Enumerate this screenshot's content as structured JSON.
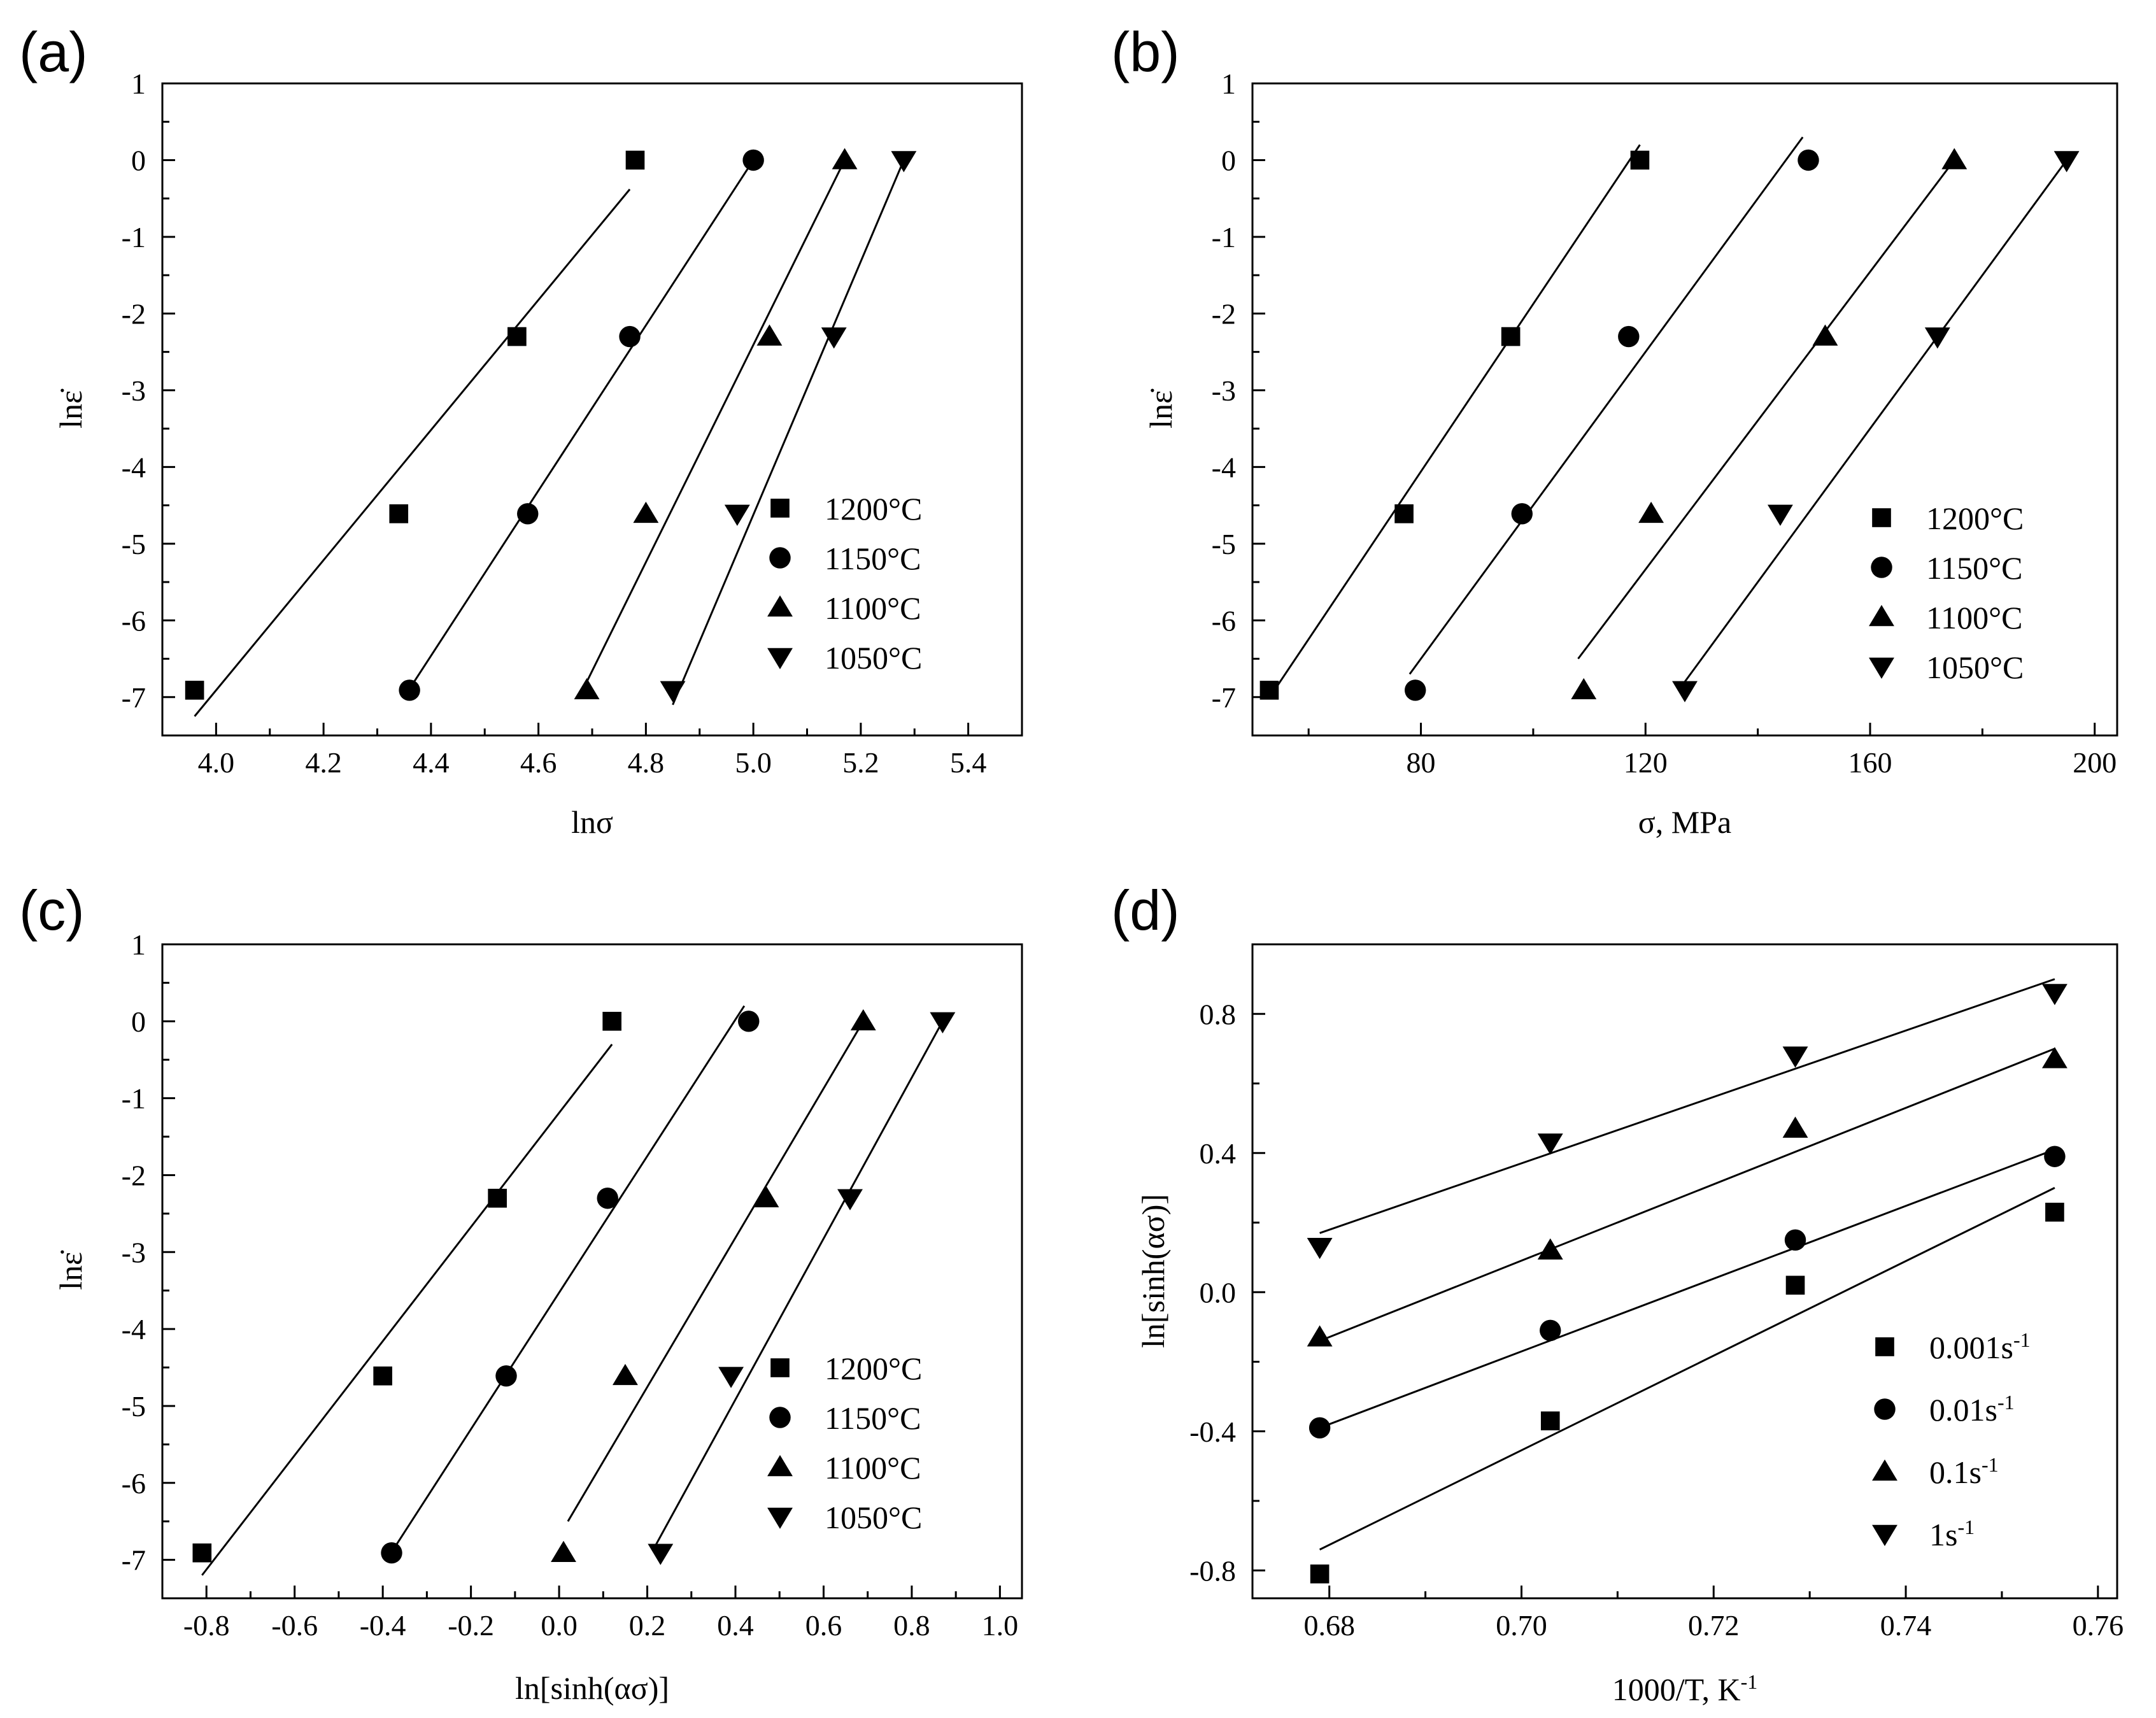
{
  "chart_data": [
    {
      "panel": "(a)",
      "type": "scatter",
      "xlabel": "lnσ",
      "ylabel": "lnε̇",
      "xlim": [
        3.9,
        5.5
      ],
      "ylim": [
        -7.5,
        1
      ],
      "xticks": [
        4.0,
        4.2,
        4.4,
        4.6,
        4.8,
        5.0,
        5.2,
        5.4
      ],
      "xtick_labels": [
        "4.0",
        "4.2",
        "4.4",
        "4.6",
        "4.8",
        "5.0",
        "5.2",
        "5.4"
      ],
      "yticks": [
        1,
        0,
        -1,
        -2,
        -3,
        -4,
        -5,
        -6,
        -7
      ],
      "ytick_labels": [
        "1",
        "0",
        "-1",
        "-2",
        "-3",
        "-4",
        "-5",
        "-6",
        "-7"
      ],
      "legend": "right",
      "series": [
        {
          "name": "1200°C",
          "marker": "square",
          "x": [
            3.96,
            4.34,
            4.56,
            4.78
          ],
          "y": [
            -6.91,
            -4.61,
            -2.3,
            0
          ],
          "fit": [
            [
              3.96,
              -7.25
            ],
            [
              4.77,
              -0.38
            ]
          ]
        },
        {
          "name": "1150°C",
          "marker": "circle",
          "x": [
            4.36,
            4.58,
            4.77,
            5.0
          ],
          "y": [
            -6.91,
            -4.61,
            -2.3,
            0
          ],
          "fit": [
            [
              4.35,
              -7.0
            ],
            [
              5.0,
              0.0
            ]
          ]
        },
        {
          "name": "1100°C",
          "marker": "triangle-up",
          "x": [
            4.69,
            4.8,
            5.03,
            5.17
          ],
          "y": [
            -6.91,
            -4.61,
            -2.3,
            0
          ],
          "fit": [
            [
              4.69,
              -6.8
            ],
            [
              5.17,
              0.0
            ]
          ]
        },
        {
          "name": "1050°C",
          "marker": "triangle-down",
          "x": [
            4.85,
            4.97,
            5.15,
            5.28
          ],
          "y": [
            -6.91,
            -4.61,
            -2.3,
            0
          ],
          "fit": [
            [
              4.85,
              -7.1
            ],
            [
              5.28,
              0.0
            ]
          ]
        }
      ]
    },
    {
      "panel": "(b)",
      "type": "scatter",
      "xlabel": "σ, MPa",
      "ylabel": "lnε̇",
      "xlim": [
        50,
        204
      ],
      "ylim": [
        -7.5,
        1
      ],
      "xticks": [
        80,
        120,
        160,
        200
      ],
      "xtick_labels": [
        "80",
        "120",
        "160",
        "200"
      ],
      "yticks": [
        1,
        0,
        -1,
        -2,
        -3,
        -4,
        -5,
        -6,
        -7
      ],
      "ytick_labels": [
        "1",
        "0",
        "-1",
        "-2",
        "-3",
        "-4",
        "-5",
        "-6",
        "-7"
      ],
      "legend": "right",
      "series": [
        {
          "name": "1200°C",
          "marker": "square",
          "x": [
            53,
            77,
            96,
            119
          ],
          "y": [
            -6.91,
            -4.61,
            -2.3,
            0
          ],
          "fit": [
            [
              54,
              -6.9
            ],
            [
              119,
              0.2
            ]
          ]
        },
        {
          "name": "1150°C",
          "marker": "circle",
          "x": [
            79,
            98,
            117,
            149
          ],
          "y": [
            -6.91,
            -4.61,
            -2.3,
            0
          ],
          "fit": [
            [
              78,
              -6.7
            ],
            [
              148,
              0.3
            ]
          ]
        },
        {
          "name": "1100°C",
          "marker": "triangle-up",
          "x": [
            109,
            121,
            152,
            175
          ],
          "y": [
            -6.91,
            -4.61,
            -2.3,
            0
          ],
          "fit": [
            [
              108,
              -6.5
            ],
            [
              175,
              0.0
            ]
          ]
        },
        {
          "name": "1050°C",
          "marker": "triangle-down",
          "x": [
            127,
            144,
            172,
            195
          ],
          "y": [
            -6.91,
            -4.61,
            -2.3,
            0
          ],
          "fit": [
            [
              127,
              -6.8
            ],
            [
              195,
              0.0
            ]
          ]
        }
      ]
    },
    {
      "panel": "(c)",
      "type": "scatter",
      "xlabel": "ln[sinh(ασ)]",
      "ylabel": "lnε̇",
      "xlim": [
        -0.9,
        1.05
      ],
      "ylim": [
        -7.5,
        1
      ],
      "xticks": [
        -0.8,
        -0.6,
        -0.4,
        -0.2,
        0.0,
        0.2,
        0.4,
        0.6,
        0.8,
        1.0
      ],
      "xtick_labels": [
        "-0.8",
        "-0.6",
        "-0.4",
        "-0.2",
        "0.0",
        "0.2",
        "0.4",
        "0.6",
        "0.8",
        "1.0"
      ],
      "yticks": [
        1,
        0,
        -1,
        -2,
        -3,
        -4,
        -5,
        -6,
        -7
      ],
      "ytick_labels": [
        "1",
        "0",
        "-1",
        "-2",
        "-3",
        "-4",
        "-5",
        "-6",
        "-7"
      ],
      "legend": "right",
      "series": [
        {
          "name": "1200°C",
          "marker": "square",
          "x": [
            -0.81,
            -0.4,
            -0.14,
            0.12
          ],
          "y": [
            -6.91,
            -4.61,
            -2.3,
            0
          ],
          "fit": [
            [
              -0.81,
              -7.2
            ],
            [
              0.12,
              -0.3
            ]
          ]
        },
        {
          "name": "1150°C",
          "marker": "circle",
          "x": [
            -0.38,
            -0.12,
            0.11,
            0.43
          ],
          "y": [
            -6.91,
            -4.61,
            -2.3,
            0
          ],
          "fit": [
            [
              -0.38,
              -6.9
            ],
            [
              0.42,
              0.2
            ]
          ]
        },
        {
          "name": "1100°C",
          "marker": "triangle-up",
          "x": [
            0.01,
            0.15,
            0.47,
            0.69
          ],
          "y": [
            -6.91,
            -4.61,
            -2.3,
            0
          ],
          "fit": [
            [
              0.02,
              -6.5
            ],
            [
              0.69,
              0.0
            ]
          ]
        },
        {
          "name": "1050°C",
          "marker": "triangle-down",
          "x": [
            0.23,
            0.39,
            0.66,
            0.87
          ],
          "y": [
            -6.91,
            -4.61,
            -2.3,
            0
          ],
          "fit": [
            [
              0.22,
              -6.8
            ],
            [
              0.87,
              0.0
            ]
          ]
        }
      ]
    },
    {
      "panel": "(d)",
      "type": "scatter",
      "xlabel": "1000/T, K",
      "xlabel_sup": "-1",
      "ylabel": "ln[sinh(ασ)]",
      "xlim": [
        0.672,
        0.762
      ],
      "ylim": [
        -0.88,
        1.0
      ],
      "xticks": [
        0.68,
        0.7,
        0.72,
        0.74,
        0.76
      ],
      "xtick_labels": [
        "0.68",
        "0.70",
        "0.72",
        "0.74",
        "0.76"
      ],
      "yticks": [
        0.8,
        0.4,
        0.0,
        -0.4,
        -0.8
      ],
      "ytick_labels": [
        "0.8",
        "0.4",
        "0.0",
        "-0.4",
        "-0.8"
      ],
      "legend": "bottom-right",
      "series": [
        {
          "name": "0.001s",
          "sup": "-1",
          "marker": "square",
          "x": [
            0.679,
            0.703,
            0.7285,
            0.7555
          ],
          "y": [
            -0.81,
            -0.37,
            0.02,
            0.23
          ],
          "fit": [
            [
              0.679,
              -0.74
            ],
            [
              0.7555,
              0.3
            ]
          ]
        },
        {
          "name": "0.01s",
          "sup": "-1",
          "marker": "circle",
          "x": [
            0.679,
            0.703,
            0.7285,
            0.7555
          ],
          "y": [
            -0.39,
            -0.11,
            0.15,
            0.39
          ],
          "fit": [
            [
              0.679,
              -0.39
            ],
            [
              0.7555,
              0.41
            ]
          ]
        },
        {
          "name": "0.1s",
          "sup": "-1",
          "marker": "triangle-up",
          "x": [
            0.679,
            0.703,
            0.7285,
            0.7555
          ],
          "y": [
            -0.13,
            0.12,
            0.47,
            0.67
          ],
          "fit": [
            [
              0.679,
              -0.14
            ],
            [
              0.7555,
              0.7
            ]
          ]
        },
        {
          "name": "1s",
          "sup": "-1",
          "marker": "triangle-down",
          "x": [
            0.679,
            0.703,
            0.7285,
            0.7555
          ],
          "y": [
            0.13,
            0.43,
            0.68,
            0.86
          ],
          "fit": [
            [
              0.679,
              0.17
            ],
            [
              0.7555,
              0.9
            ]
          ]
        }
      ]
    }
  ]
}
